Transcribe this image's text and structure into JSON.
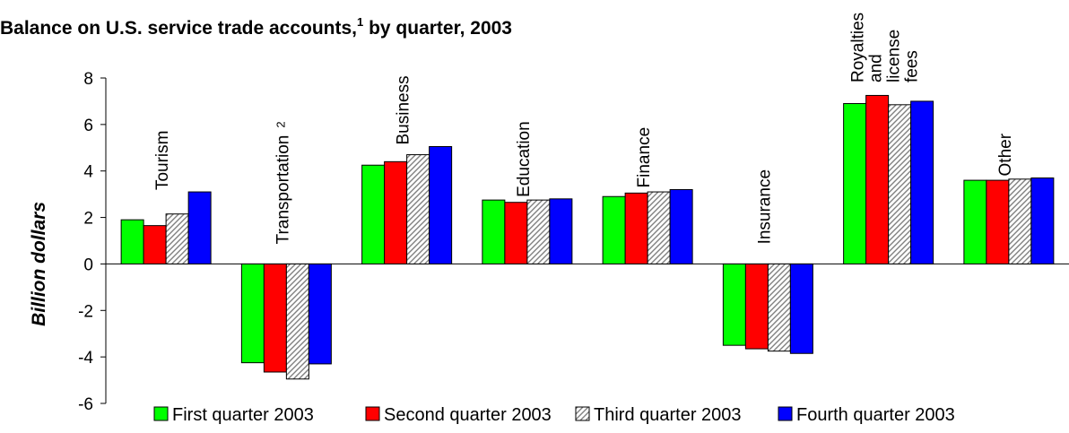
{
  "chart_data": {
    "type": "bar",
    "title": "Balance on U.S. service trade accounts,",
    "title_footnote": "1",
    "title_suffix": " by quarter, 2003",
    "ylabel": "Billion dollars",
    "xlabel": "",
    "ylim": [
      -6,
      8
    ],
    "yticks": [
      "8",
      "6",
      "4",
      "2",
      "0",
      "-2",
      "-4",
      "-6"
    ],
    "ytick_values": [
      8,
      6,
      4,
      2,
      0,
      -2,
      -4,
      -6
    ],
    "legend_position": "bottom",
    "grid": false,
    "categories": [
      {
        "lines": [
          "Tourism"
        ],
        "footnote": ""
      },
      {
        "lines": [
          "Transportation"
        ],
        "footnote": "2"
      },
      {
        "lines": [
          "Business"
        ],
        "footnote": ""
      },
      {
        "lines": [
          "Education"
        ],
        "footnote": ""
      },
      {
        "lines": [
          "Finance"
        ],
        "footnote": ""
      },
      {
        "lines": [
          "Insurance"
        ],
        "footnote": ""
      },
      {
        "lines": [
          "Royalties",
          "and",
          "license",
          "fees"
        ],
        "footnote": ""
      },
      {
        "lines": [
          "Other"
        ],
        "footnote": ""
      }
    ],
    "series": [
      {
        "name": "First quarter 2003",
        "color": "#00ff00",
        "pattern": "solid",
        "values": [
          1.9,
          -4.25,
          4.25,
          2.75,
          2.9,
          -3.5,
          6.9,
          3.6
        ]
      },
      {
        "name": "Second quarter 2003",
        "color": "#ff0000",
        "pattern": "solid",
        "values": [
          1.65,
          -4.65,
          4.4,
          2.65,
          3.05,
          -3.65,
          7.25,
          3.6
        ]
      },
      {
        "name": "Third quarter 2003",
        "color": "#c0c0c0",
        "pattern": "diagonal-hatch",
        "values": [
          2.15,
          -4.95,
          4.7,
          2.75,
          3.1,
          -3.75,
          6.85,
          3.65
        ]
      },
      {
        "name": "Fourth quarter 2003",
        "color": "#0000ff",
        "pattern": "solid",
        "values": [
          3.1,
          -4.3,
          5.05,
          2.8,
          3.2,
          -3.85,
          7.0,
          3.7
        ]
      }
    ]
  }
}
